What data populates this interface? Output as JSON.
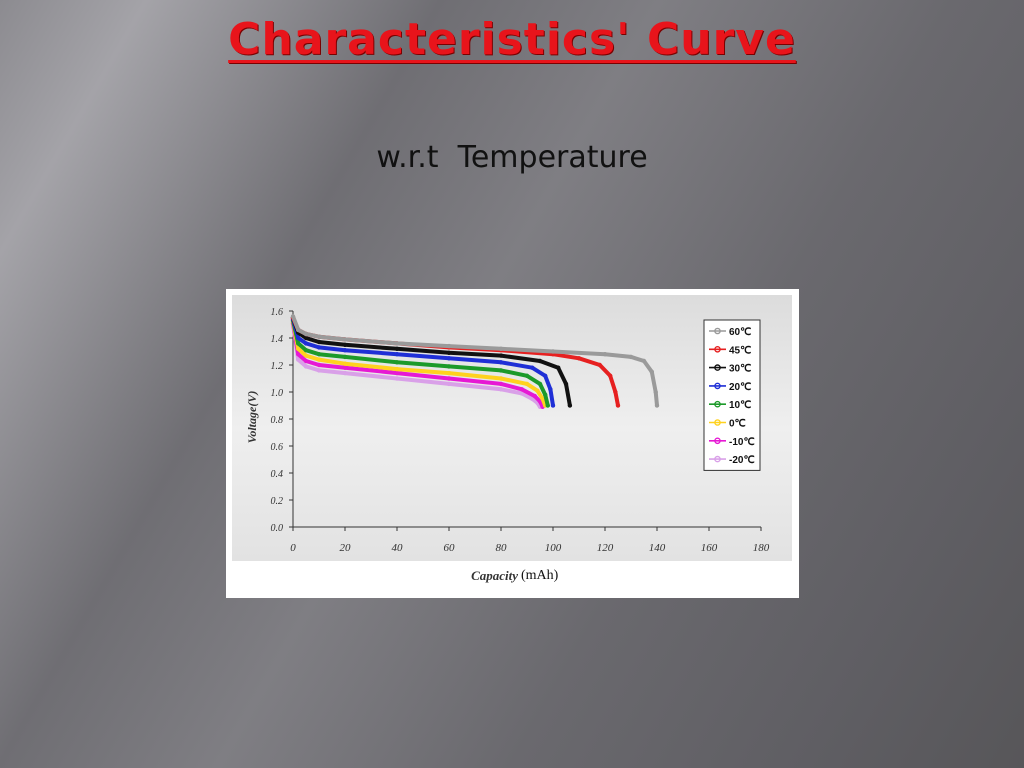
{
  "slide": {
    "title": "Characteristics' Curve",
    "subtitle": "w.r.t  Temperature"
  },
  "colors": {
    "title": "#e8141b",
    "plot_background": "#e9e9e9"
  },
  "chart_data": {
    "type": "line",
    "title": "",
    "xlabel_italic": "Capacity",
    "xlabel_unit": "(mAh)",
    "ylabel": "Voltage(V)",
    "xlim": [
      0,
      180
    ],
    "ylim": [
      0.0,
      1.6
    ],
    "x_ticks": [
      "0",
      "20",
      "40",
      "60",
      "80",
      "100",
      "120",
      "140",
      "160",
      "180"
    ],
    "y_ticks": [
      "0.0",
      "0.2",
      "0.4",
      "0.6",
      "0.8",
      "1.0",
      "1.2",
      "1.4",
      "1.6"
    ],
    "legend_position": "top-right",
    "series": [
      {
        "name": "60℃",
        "color": "#9a9a9a",
        "x": [
          0,
          2,
          5,
          10,
          20,
          40,
          60,
          80,
          100,
          120,
          130,
          135,
          138,
          139.5,
          140
        ],
        "y": [
          1.56,
          1.46,
          1.43,
          1.41,
          1.39,
          1.36,
          1.34,
          1.32,
          1.3,
          1.28,
          1.26,
          1.23,
          1.15,
          1.0,
          0.9
        ]
      },
      {
        "name": "45℃",
        "color": "#e62020",
        "x": [
          0,
          2,
          5,
          10,
          20,
          40,
          60,
          80,
          100,
          110,
          118,
          122,
          124,
          125
        ],
        "y": [
          1.55,
          1.46,
          1.43,
          1.41,
          1.39,
          1.36,
          1.33,
          1.31,
          1.28,
          1.25,
          1.2,
          1.12,
          1.0,
          0.9
        ]
      },
      {
        "name": "30℃",
        "color": "#111111",
        "x": [
          0,
          2,
          5,
          10,
          20,
          40,
          60,
          80,
          95,
          102,
          105,
          106.5
        ],
        "y": [
          1.55,
          1.44,
          1.4,
          1.37,
          1.35,
          1.32,
          1.29,
          1.27,
          1.23,
          1.18,
          1.06,
          0.9
        ]
      },
      {
        "name": "20℃",
        "color": "#1f2fd6",
        "x": [
          0,
          2,
          5,
          10,
          20,
          40,
          60,
          80,
          92,
          97,
          99,
          100
        ],
        "y": [
          1.54,
          1.4,
          1.36,
          1.33,
          1.31,
          1.28,
          1.25,
          1.22,
          1.18,
          1.12,
          1.02,
          0.9
        ]
      },
      {
        "name": "10℃",
        "color": "#1c9a2a",
        "x": [
          0,
          2,
          5,
          10,
          20,
          40,
          60,
          80,
          90,
          95,
          97,
          98
        ],
        "y": [
          1.53,
          1.36,
          1.31,
          1.28,
          1.26,
          1.22,
          1.19,
          1.16,
          1.12,
          1.06,
          0.98,
          0.9
        ]
      },
      {
        "name": "0℃",
        "color": "#ffd21f",
        "x": [
          0,
          2,
          5,
          10,
          20,
          40,
          60,
          80,
          90,
          94,
          96,
          97
        ],
        "y": [
          1.52,
          1.32,
          1.27,
          1.24,
          1.21,
          1.17,
          1.14,
          1.1,
          1.06,
          1.01,
          0.95,
          0.9
        ]
      },
      {
        "name": "-10℃",
        "color": "#e619d4",
        "x": [
          0,
          2,
          5,
          10,
          20,
          40,
          60,
          80,
          88,
          93,
          95,
          96
        ],
        "y": [
          1.51,
          1.28,
          1.23,
          1.2,
          1.18,
          1.14,
          1.1,
          1.06,
          1.02,
          0.97,
          0.93,
          0.89
        ]
      },
      {
        "name": "-20℃",
        "color": "#d9a0e8",
        "x": [
          0,
          2,
          5,
          10,
          20,
          40,
          60,
          80,
          88,
          92,
          94,
          95
        ],
        "y": [
          1.5,
          1.24,
          1.19,
          1.16,
          1.14,
          1.1,
          1.06,
          1.02,
          0.99,
          0.95,
          0.92,
          0.89
        ]
      }
    ]
  }
}
